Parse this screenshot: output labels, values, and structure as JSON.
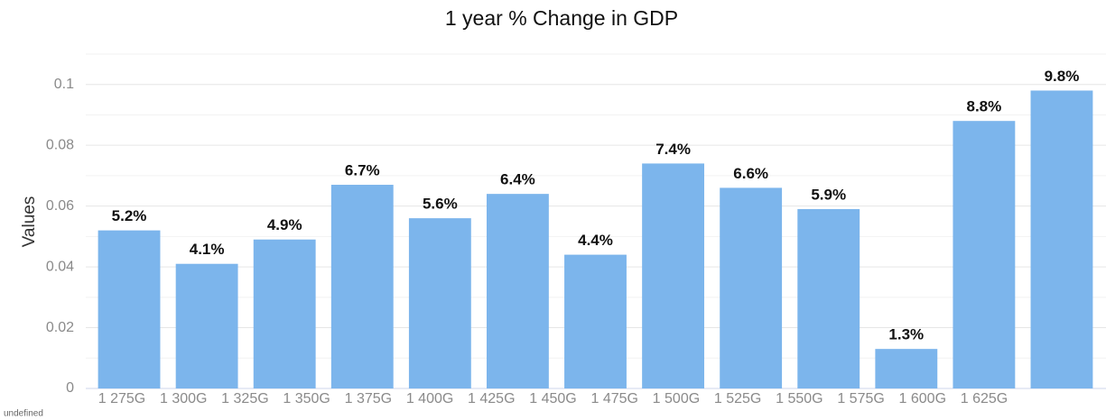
{
  "chart_data": {
    "type": "bar",
    "title": "1 year % Change in GDP",
    "y_label": "Values",
    "footnote": "undefined",
    "categories": [
      null,
      null,
      null,
      null,
      null,
      null,
      null,
      null,
      null,
      null,
      null,
      null,
      null
    ],
    "values": [
      0.052,
      0.041,
      0.049,
      0.067,
      0.056,
      0.064,
      0.044,
      0.074,
      0.066,
      0.059,
      0.013,
      0.088,
      0.098
    ],
    "value_labels": [
      "5.2%",
      "4.1%",
      "4.9%",
      "6.7%",
      "5.6%",
      "6.4%",
      "4.4%",
      "7.4%",
      "6.6%",
      "5.9%",
      "1.3%",
      "8.8%",
      "9.8%"
    ],
    "xticks": [
      "1 275G",
      "1 300G",
      "1 325G",
      "1 350G",
      "1 375G",
      "1 400G",
      "1 425G",
      "1 450G",
      "1 475G",
      "1 500G",
      "1 525G",
      "1 550G",
      "1 575G",
      "1 600G",
      "1 625G"
    ],
    "color": "#7cb5ec",
    "ylim": [
      0,
      0.11
    ],
    "yticks": [
      0,
      0.02,
      0.04,
      0.06,
      0.08,
      0.1
    ],
    "grid": true
  }
}
